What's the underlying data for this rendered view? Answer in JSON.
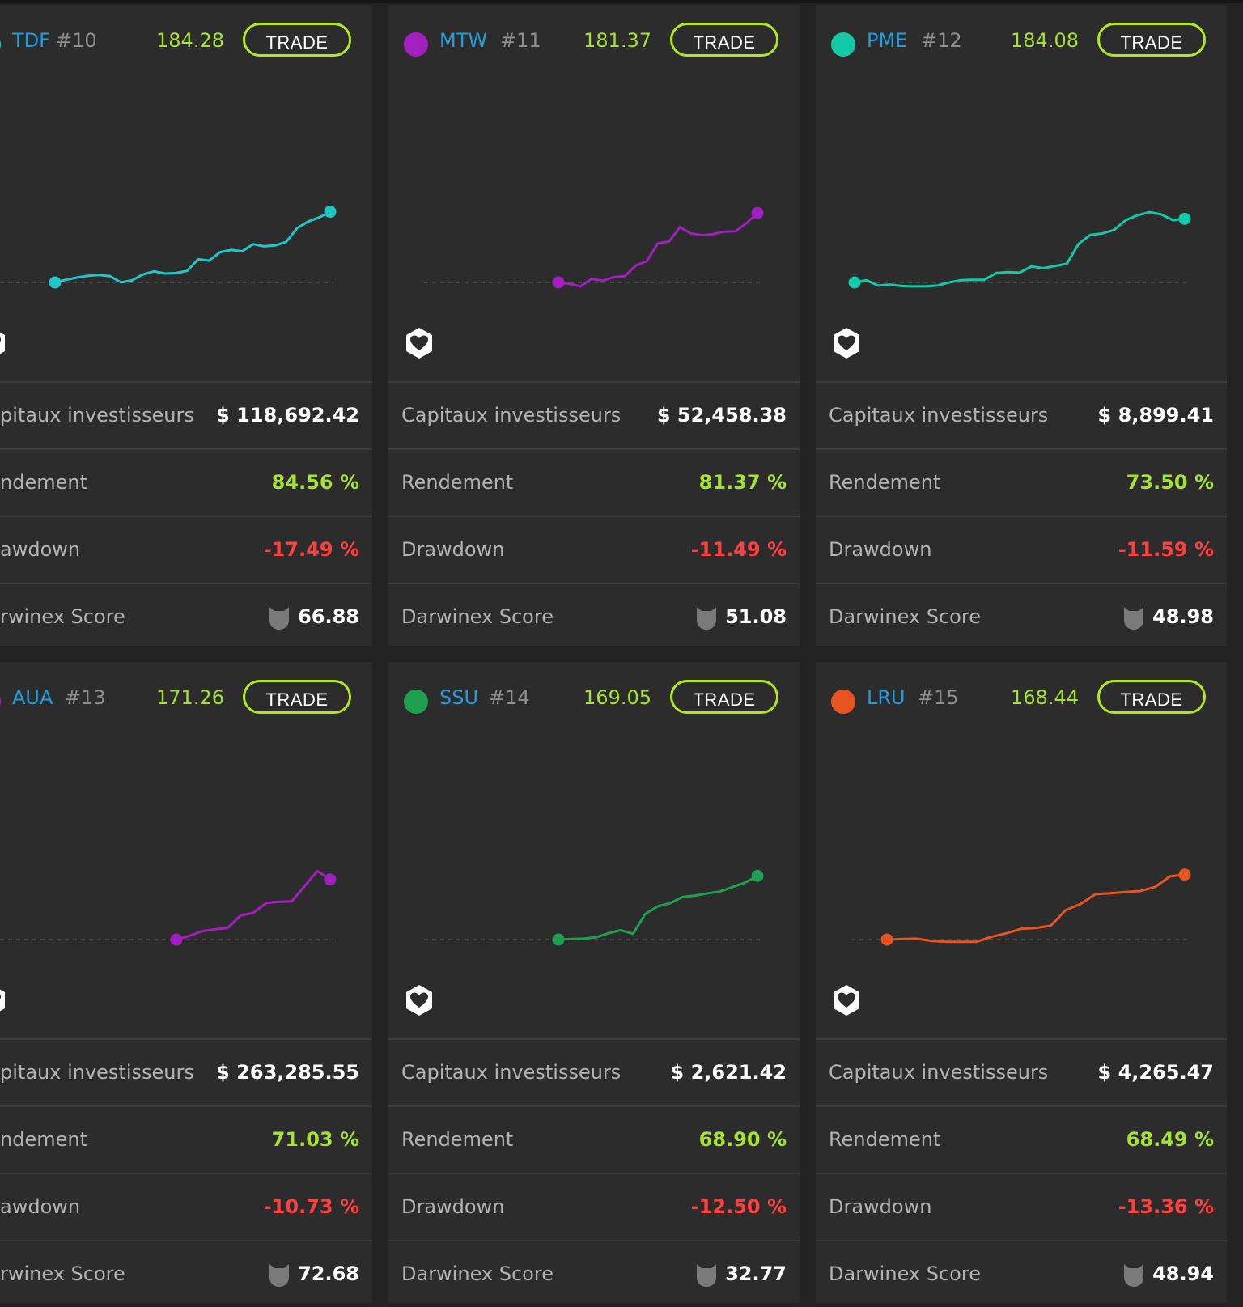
{
  "labels": {
    "trade": "TRADE",
    "capital": "Capitaux investisseurs",
    "return": "Rendement",
    "drawdown": "Drawdown",
    "score": "Darwinex Score"
  },
  "colors": {
    "background": "#222222",
    "card": "#2c2c2c",
    "accent_green": "#a6e22e",
    "negative_red": "#ff4040",
    "ticker_blue": "#1e9ee0"
  },
  "cards": [
    {
      "ticker": "TDF",
      "rank": "#10",
      "price": "184.28",
      "color": "#1fc7c7",
      "capital": "$ 118,692.42",
      "return": "84.56 %",
      "drawdown": "-17.49 %",
      "score": "66.88",
      "labels_cropped": {
        "capital": "pitaux investisseurs",
        "return": "ndement",
        "drawdown": "awdown",
        "score": "rwinex Score"
      },
      "series": [
        0,
        0.6,
        1.1,
        1.5,
        1.7,
        1.4,
        0,
        0.5,
        1.8,
        2.5,
        2,
        2.1,
        2.6,
        5.2,
        4.9,
        6.8,
        7.3,
        7,
        8.6,
        8.1,
        8.3,
        9.1,
        12.2,
        13.7,
        14.6,
        15.9
      ]
    },
    {
      "ticker": "MTW",
      "rank": "#11",
      "price": "181.37",
      "color": "#a31fbf",
      "capital": "$ 52,458.38",
      "return": "81.37 %",
      "drawdown": "-11.49 %",
      "score": "51.08",
      "series": [
        0,
        -0.3,
        -0.9,
        0.8,
        0.4,
        1.2,
        1.4,
        3.8,
        4.8,
        8.8,
        9.2,
        12.4,
        11,
        10.6,
        10.9,
        11.4,
        11.5,
        13.3,
        15.6
      ]
    },
    {
      "ticker": "PME",
      "rank": "#12",
      "price": "184.08",
      "color": "#12c9a8",
      "capital": "$ 8,899.41",
      "return": "73.50 %",
      "drawdown": "-11.59 %",
      "score": "48.98",
      "series": [
        0,
        0.5,
        -0.7,
        -0.5,
        -0.8,
        -0.9,
        -0.9,
        -0.7,
        0,
        0.5,
        0.6,
        0.6,
        2.1,
        2.3,
        2.2,
        3.6,
        3.2,
        3.7,
        4.2,
        8.7,
        10.7,
        11,
        11.8,
        14,
        15.1,
        15.8,
        15.3,
        14,
        14.3
      ]
    },
    {
      "ticker": "AUA",
      "rank": "#13",
      "price": "171.26",
      "color": "#a31fbf",
      "capital": "$ 263,285.55",
      "return": "71.03 %",
      "drawdown": "-10.73 %",
      "score": "72.68",
      "labels_cropped": {
        "capital": "pitaux investisseurs",
        "return": "ndement",
        "drawdown": "awdown",
        "score": "rwinex Score"
      },
      "series": [
        0,
        0.8,
        1.9,
        2.3,
        2.6,
        5.4,
        6,
        8.2,
        8.5,
        8.6,
        12,
        15.4,
        13.5
      ]
    },
    {
      "ticker": "SSU",
      "rank": "#14",
      "price": "169.05",
      "color": "#1fa050",
      "capital": "$ 2,621.42",
      "return": "68.90 %",
      "drawdown": "-12.50 %",
      "score": "32.77",
      "series": [
        0,
        0.1,
        0.2,
        0.5,
        1.4,
        2.1,
        1.3,
        5.8,
        7.5,
        8.2,
        9.6,
        9.9,
        10.4,
        10.8,
        11.8,
        12.8,
        14.3
      ]
    },
    {
      "ticker": "LRU",
      "rank": "#15",
      "price": "168.44",
      "color": "#e85420",
      "capital": "$ 4,265.47",
      "return": "68.49 %",
      "drawdown": "-13.36 %",
      "score": "48.94",
      "series": [
        0,
        0.1,
        0.2,
        -0.3,
        -0.5,
        -0.5,
        -0.5,
        0.6,
        1.4,
        2.4,
        2.6,
        3.1,
        6.6,
        8,
        10.2,
        10.4,
        10.7,
        10.9,
        11.8,
        14.2,
        14.6
      ]
    }
  ]
}
